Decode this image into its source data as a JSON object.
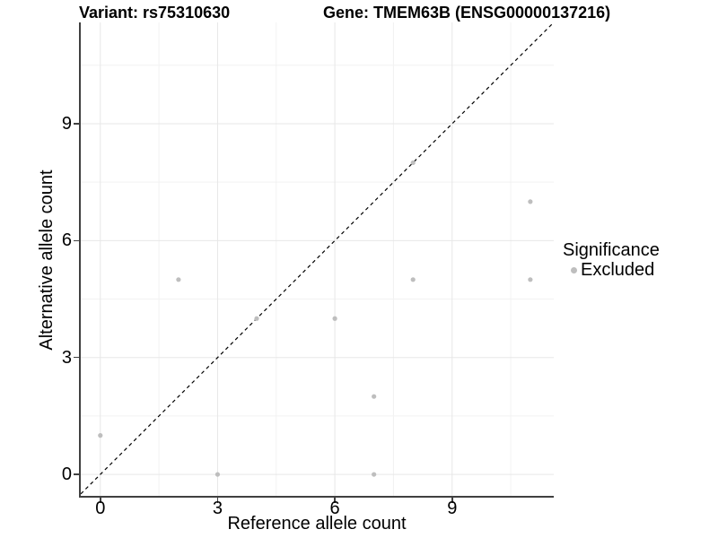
{
  "chart_data": {
    "type": "scatter",
    "titles": {
      "left": "Variant: rs75310630",
      "right": "Gene: TMEM63B (ENSG00000137216)"
    },
    "xlabel": "Reference allele count",
    "ylabel": "Alternative allele count",
    "xlim": [
      -0.5,
      11.6
    ],
    "ylim": [
      -0.55,
      11.6
    ],
    "x_major_ticks": [
      0,
      3,
      6,
      9
    ],
    "y_major_ticks": [
      0,
      3,
      6,
      9
    ],
    "x_minor_gridlines": [
      1.5,
      4.5,
      7.5,
      10.5
    ],
    "y_minor_gridlines": [
      1.5,
      4.5,
      7.5,
      10.5
    ],
    "grid": true,
    "series": [
      {
        "name": "Excluded",
        "color": "#bebebe",
        "points": [
          [
            0,
            1
          ],
          [
            2,
            5
          ],
          [
            3,
            0
          ],
          [
            4,
            4
          ],
          [
            6,
            4
          ],
          [
            7,
            0
          ],
          [
            7,
            2
          ],
          [
            8,
            5
          ],
          [
            8,
            8
          ],
          [
            11,
            5
          ],
          [
            11,
            7
          ]
        ]
      }
    ],
    "reference_line": {
      "type": "identity",
      "style": "dashed",
      "color": "#000000"
    },
    "legend": {
      "position": "right",
      "title": "Significance",
      "items": [
        {
          "label": "Excluded",
          "color": "#bebebe"
        }
      ]
    },
    "colors": {
      "point": "#bebebe",
      "grid_major": "#e7e7e7",
      "grid_minor": "#f2f2f2",
      "axis_line": "#404040",
      "text": "#000000"
    }
  }
}
